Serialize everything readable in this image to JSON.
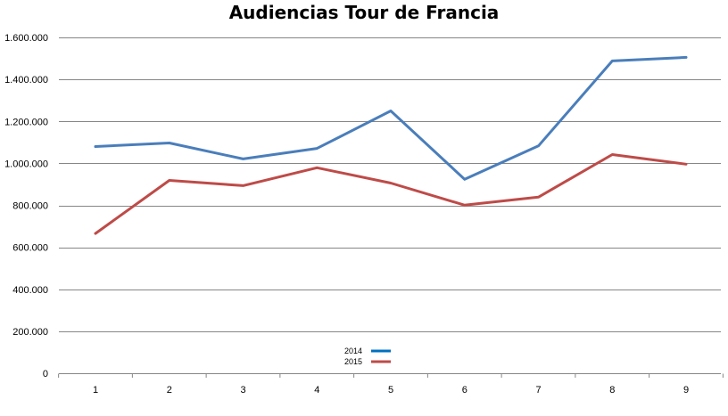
{
  "chart_data": {
    "type": "line",
    "title": "Audiencias Tour de Francia",
    "xlabel": "",
    "ylabel": "",
    "x": [
      1,
      2,
      3,
      4,
      5,
      6,
      7,
      8,
      9
    ],
    "x_tick_labels": [
      "1",
      "2",
      "3",
      "4",
      "5",
      "6",
      "7",
      "8",
      "9"
    ],
    "y_tick_labels": [
      "0",
      "200.000",
      "400.000",
      "600.000",
      "800.000",
      "1.000.000",
      "1.200.000",
      "1.400.000",
      "1.600.000"
    ],
    "y_ticks": [
      0,
      200000,
      400000,
      600000,
      800000,
      1000000,
      1200000,
      1400000,
      1600000
    ],
    "ylim": [
      0,
      1600000
    ],
    "grid": "horizontal",
    "legend_position": "bottom-center",
    "series": [
      {
        "name": "2014",
        "color": "#4a7ebb",
        "legend_color": "#0070c0",
        "values": [
          1080000,
          1097000,
          1021000,
          1071000,
          1250000,
          924000,
          1083000,
          1488000,
          1505000
        ]
      },
      {
        "name": "2015",
        "color": "#be4b48",
        "legend_color": "#be4b48",
        "values": [
          666000,
          919000,
          894000,
          979000,
          906000,
          801000,
          839000,
          1042000,
          996000
        ]
      }
    ]
  }
}
